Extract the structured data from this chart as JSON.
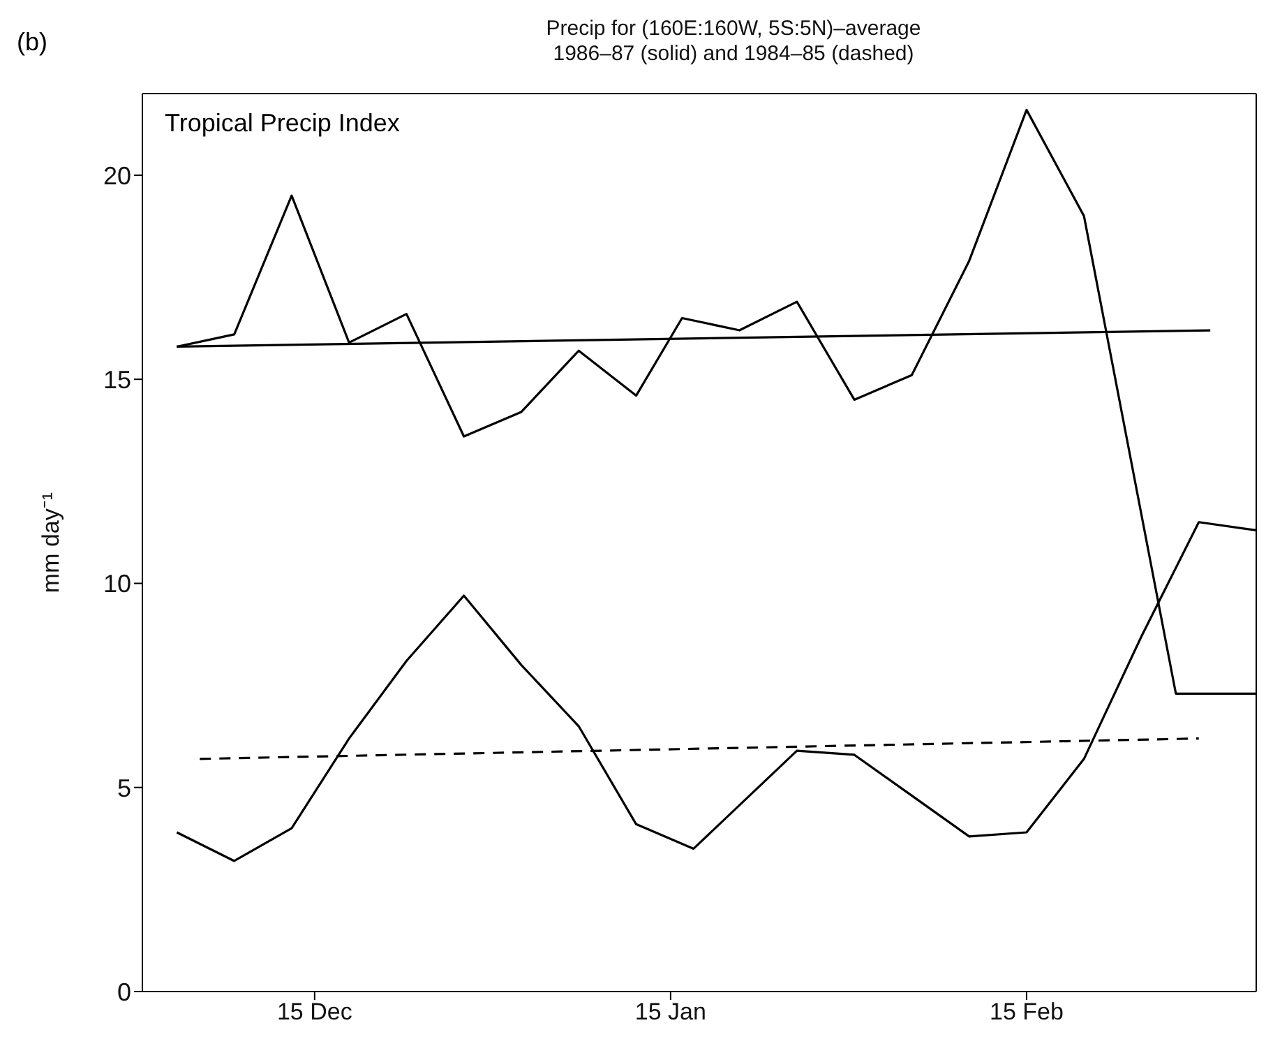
{
  "chart_data": {
    "type": "line",
    "title": "Precip for (160E:160W, 5S:5N)–average",
    "subtitle": "1986–87 (solid) and 1984–85 (dashed)",
    "ylabel": "mm day⁻¹",
    "annotations": [
      "(b)",
      "Tropical Precip Index"
    ],
    "xlim": [
      "1986-11-30",
      "1987-03-07"
    ],
    "xticks": [
      {
        "value": "1986-12-15",
        "label": "15 Dec"
      },
      {
        "value": "1987-01-15",
        "label": "15 Jan"
      },
      {
        "value": "1987-02-15",
        "label": "15 Feb"
      }
    ],
    "ylim": [
      0,
      22
    ],
    "yticks": [
      0,
      5,
      10,
      15,
      20
    ],
    "grid": false,
    "legend": false,
    "marker": "none",
    "series": [
      {
        "color": "#000000",
        "line_style": "solid",
        "x": [
          "1986-12-03",
          "1986-12-08",
          "1986-12-13",
          "1986-12-18",
          "1986-12-23",
          "1986-12-28",
          "1987-01-02",
          "1987-01-07",
          "1987-01-12",
          "1987-01-16",
          "1987-01-21",
          "1987-01-26",
          "1987-01-31",
          "1987-02-05",
          "1987-02-10",
          "1987-02-15",
          "1987-02-20",
          "1987-02-28",
          "1987-03-07"
        ],
        "values": [
          15.8,
          16.1,
          19.5,
          15.9,
          16.6,
          13.6,
          14.2,
          15.7,
          14.6,
          16.5,
          16.2,
          16.9,
          14.5,
          15.1,
          17.9,
          21.6,
          19.0,
          7.3,
          7.3
        ]
      },
      {
        "color": "#000000",
        "line_style": "solid",
        "x": [
          "1986-12-03",
          "1986-12-08",
          "1986-12-13",
          "1986-12-18",
          "1986-12-23",
          "1986-12-28",
          "1987-01-02",
          "1987-01-07",
          "1987-01-12",
          "1987-01-17",
          "1987-01-26",
          "1987-01-31",
          "1987-02-05",
          "1987-02-10",
          "1987-02-15",
          "1987-02-20",
          "1987-02-25",
          "1987-03-02",
          "1987-03-07"
        ],
        "values": [
          3.9,
          3.2,
          4.0,
          6.2,
          8.1,
          9.7,
          8.0,
          6.5,
          4.1,
          3.5,
          5.9,
          5.8,
          4.8,
          3.8,
          3.9,
          5.7,
          8.7,
          11.5,
          11.3
        ]
      },
      {
        "type": "line",
        "color": "#000000",
        "line_style": "solid",
        "x": [
          "1986-12-03",
          "1987-03-03"
        ],
        "values": [
          15.8,
          16.2
        ]
      },
      {
        "type": "line",
        "color": "#000000",
        "line_style": "dashed",
        "x": [
          "1986-12-05",
          "1987-03-02"
        ],
        "values": [
          5.7,
          6.2
        ]
      }
    ]
  }
}
